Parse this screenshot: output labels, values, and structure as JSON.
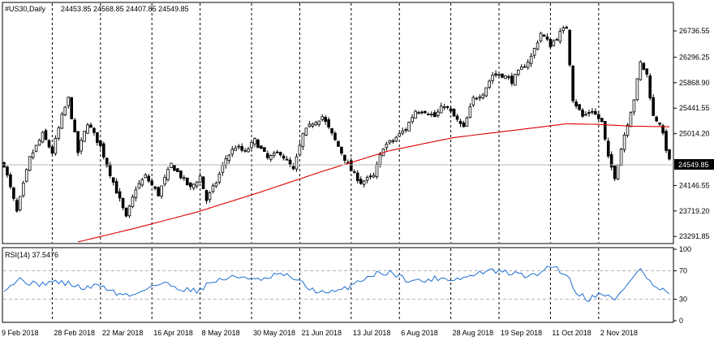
{
  "header": {
    "symbol": "#US30,Daily",
    "ohlc": "24453.85 24568.85 24407.85 24549.85"
  },
  "rsi_header": {
    "label": "RSI(14) 37.5476"
  },
  "colors": {
    "background": "#ffffff",
    "candle": "#000000",
    "moving_average": "#e00000",
    "rsi_line": "#1e6fd0",
    "grid": "#000000",
    "rsi_levels": "#b0b0b0",
    "price_tag_bg": "#000000",
    "price_tag_text": "#ffffff"
  },
  "chart_data": [
    {
      "type": "candlestick",
      "title": "#US30,Daily",
      "y_ticks": [
        "26736.55",
        "26296.25",
        "25868.90",
        "25441.55",
        "25014.20",
        "24549.85",
        "24146.55",
        "23719.20",
        "23291.85"
      ],
      "current_price": "24549.85",
      "ylim": [
        23200,
        27050
      ],
      "x_labels": [
        "9 Feb 2018",
        "28 Feb 2018",
        "22 Mar 2018",
        "16 Apr 2018",
        "8 May 2018",
        "30 May 2018",
        "21 Jun 2018",
        "13 Jul 2018",
        "6 Aug 2018",
        "28 Aug 2018",
        "19 Sep 2018",
        "11 Oct 2018",
        "2 Nov 2018"
      ],
      "close_anchors": [
        [
          0,
          24500
        ],
        [
          4,
          23700
        ],
        [
          8,
          24600
        ],
        [
          12,
          25000
        ],
        [
          15,
          24700
        ],
        [
          18,
          25300
        ],
        [
          20,
          25600
        ],
        [
          23,
          24700
        ],
        [
          26,
          25200
        ],
        [
          30,
          24800
        ],
        [
          34,
          24200
        ],
        [
          38,
          23600
        ],
        [
          41,
          24100
        ],
        [
          44,
          24300
        ],
        [
          48,
          24000
        ],
        [
          52,
          24500
        ],
        [
          55,
          24300
        ],
        [
          58,
          24100
        ],
        [
          61,
          24300
        ],
        [
          63,
          23900
        ],
        [
          66,
          24200
        ],
        [
          69,
          24600
        ],
        [
          72,
          24800
        ],
        [
          75,
          24700
        ],
        [
          78,
          24900
        ],
        [
          82,
          24600
        ],
        [
          86,
          24700
        ],
        [
          90,
          24400
        ],
        [
          93,
          25000
        ],
        [
          96,
          25200
        ],
        [
          99,
          25300
        ],
        [
          102,
          25000
        ],
        [
          105,
          24700
        ],
        [
          108,
          24400
        ],
        [
          111,
          24200
        ],
        [
          115,
          24300
        ],
        [
          118,
          24800
        ],
        [
          121,
          24900
        ],
        [
          125,
          25100
        ],
        [
          128,
          25400
        ],
        [
          131,
          25400
        ],
        [
          134,
          25300
        ],
        [
          137,
          25500
        ],
        [
          140,
          25300
        ],
        [
          143,
          25100
        ],
        [
          146,
          25600
        ],
        [
          149,
          25700
        ],
        [
          152,
          26000
        ],
        [
          155,
          26000
        ],
        [
          158,
          25900
        ],
        [
          161,
          26100
        ],
        [
          164,
          26300
        ],
        [
          167,
          26700
        ],
        [
          170,
          26500
        ],
        [
          173,
          26700
        ],
        [
          175,
          26800
        ],
        [
          177,
          25600
        ],
        [
          180,
          25300
        ],
        [
          183,
          25400
        ],
        [
          186,
          25200
        ],
        [
          188,
          24600
        ],
        [
          190,
          24300
        ],
        [
          193,
          25000
        ],
        [
          196,
          25600
        ],
        [
          198,
          26200
        ],
        [
          200,
          26000
        ],
        [
          202,
          25300
        ],
        [
          204,
          25200
        ],
        [
          207,
          24549.85
        ]
      ],
      "ma_anchors": [
        [
          23,
          23200
        ],
        [
          40,
          23420
        ],
        [
          60,
          23700
        ],
        [
          80,
          24040
        ],
        [
          100,
          24400
        ],
        [
          120,
          24730
        ],
        [
          140,
          24950
        ],
        [
          160,
          25080
        ],
        [
          175,
          25180
        ],
        [
          185,
          25170
        ],
        [
          195,
          25140
        ],
        [
          207,
          25130
        ]
      ],
      "moving_average": {
        "period_label": "",
        "ylim": [
          23200,
          27050
        ]
      }
    },
    {
      "type": "line",
      "title": "RSI(14) 37.5476",
      "ylim": [
        0,
        100
      ],
      "levels": [
        70,
        30
      ],
      "y_ticks": [
        "100",
        "70",
        "30",
        "0"
      ],
      "anchors": [
        [
          0,
          45
        ],
        [
          5,
          58
        ],
        [
          10,
          50
        ],
        [
          15,
          55
        ],
        [
          20,
          52
        ],
        [
          25,
          45
        ],
        [
          30,
          50
        ],
        [
          35,
          38
        ],
        [
          40,
          35
        ],
        [
          45,
          48
        ],
        [
          50,
          52
        ],
        [
          55,
          45
        ],
        [
          60,
          42
        ],
        [
          65,
          55
        ],
        [
          70,
          60
        ],
        [
          75,
          62
        ],
        [
          80,
          55
        ],
        [
          85,
          65
        ],
        [
          90,
          60
        ],
        [
          95,
          45
        ],
        [
          100,
          38
        ],
        [
          105,
          42
        ],
        [
          110,
          55
        ],
        [
          115,
          65
        ],
        [
          120,
          68
        ],
        [
          125,
          58
        ],
        [
          130,
          55
        ],
        [
          135,
          60
        ],
        [
          140,
          58
        ],
        [
          145,
          62
        ],
        [
          150,
          70
        ],
        [
          155,
          68
        ],
        [
          160,
          65
        ],
        [
          165,
          62
        ],
        [
          170,
          78
        ],
        [
          175,
          65
        ],
        [
          178,
          40
        ],
        [
          182,
          30
        ],
        [
          186,
          40
        ],
        [
          190,
          28
        ],
        [
          195,
          58
        ],
        [
          198,
          72
        ],
        [
          202,
          48
        ],
        [
          207,
          37.55
        ]
      ]
    }
  ]
}
